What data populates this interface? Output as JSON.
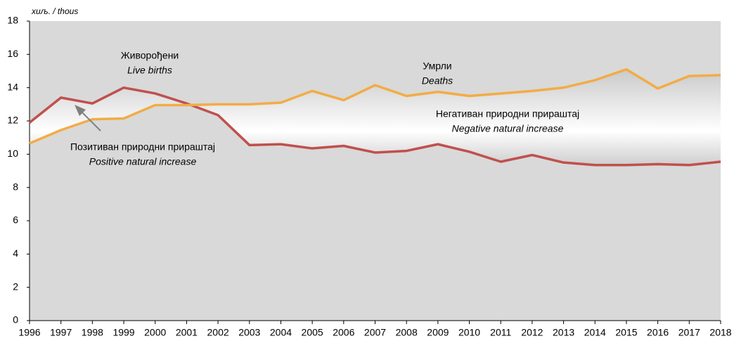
{
  "chart_data": {
    "type": "line",
    "y_label": "хиљ. / thous",
    "x": [
      1996,
      1997,
      1998,
      1999,
      2000,
      2001,
      2002,
      2003,
      2004,
      2005,
      2006,
      2007,
      2008,
      2009,
      2010,
      2011,
      2012,
      2013,
      2014,
      2015,
      2016,
      2017,
      2018
    ],
    "xlim": [
      1996,
      2018
    ],
    "ylim": [
      0,
      18
    ],
    "yticks": [
      0,
      2,
      4,
      6,
      8,
      10,
      12,
      14,
      16,
      18
    ],
    "grid": false,
    "series": [
      {
        "name": "Живорођени",
        "color": "#c0504d",
        "values": [
          11.9,
          13.4,
          13.05,
          14.0,
          13.65,
          13.05,
          12.35,
          10.55,
          10.6,
          10.35,
          10.5,
          10.1,
          10.2,
          10.6,
          10.15,
          9.55,
          9.95,
          9.5,
          9.35,
          9.35,
          9.4,
          9.35,
          9.55
        ]
      },
      {
        "name": "Умрли",
        "color": "#f2ac45",
        "values": [
          10.65,
          11.45,
          12.1,
          12.15,
          12.95,
          12.95,
          13.0,
          13.0,
          13.1,
          13.8,
          13.25,
          14.15,
          13.5,
          13.75,
          13.5,
          13.65,
          13.8,
          14.0,
          14.45,
          15.1,
          13.95,
          14.7,
          14.75
        ]
      }
    ],
    "annotations": [
      {
        "sr": "Живорођени",
        "en": "Live births"
      },
      {
        "sr": "Умрли",
        "en": "Deaths"
      },
      {
        "sr": "Негативан природни прираштај",
        "en": "Negative natural increase"
      },
      {
        "sr": "Позитиван природни прираштај",
        "en": "Positive natural increase"
      }
    ]
  }
}
